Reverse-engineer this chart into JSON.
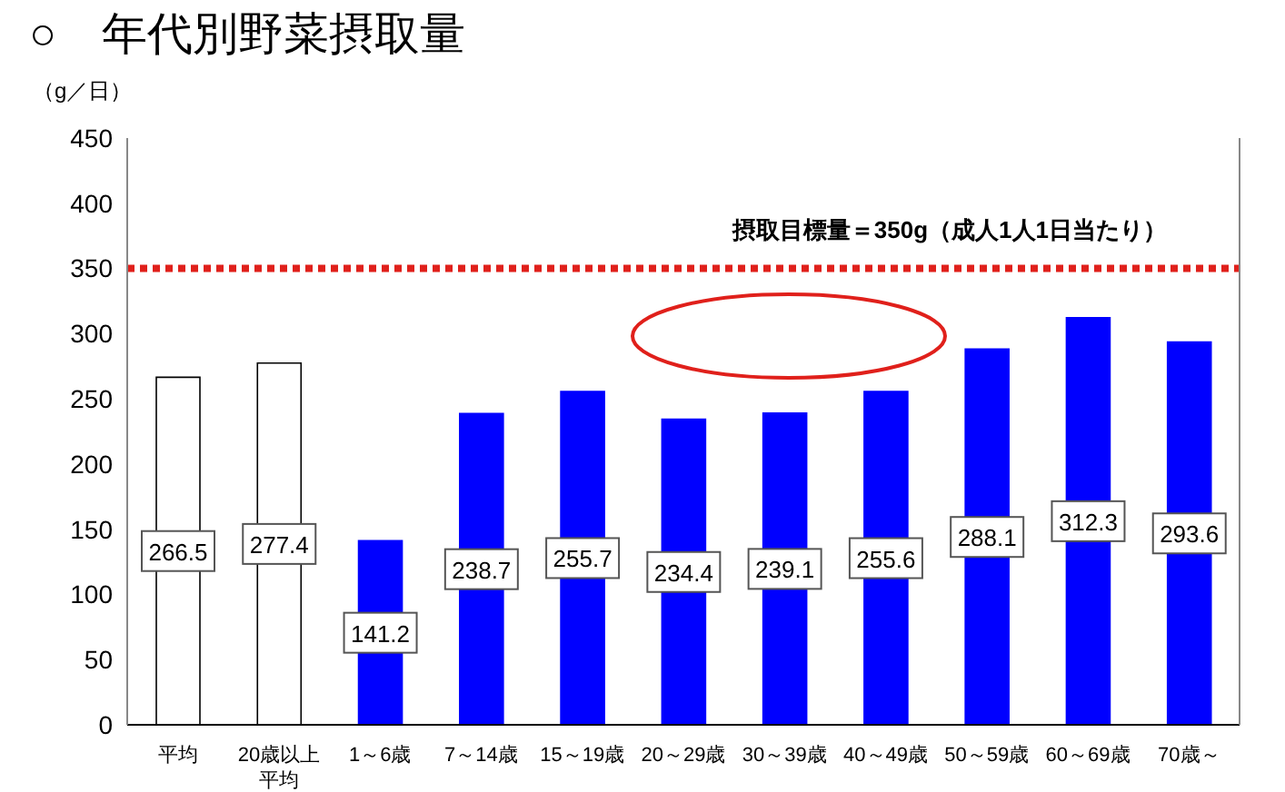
{
  "chart_data": {
    "type": "bar",
    "title": "○　年代別野菜摂取量",
    "ylabel": "（g／日）",
    "categories": [
      "平均",
      "20歳以上平均",
      "1～6歳",
      "7～14歳",
      "15～19歳",
      "20～29歳",
      "30～39歳",
      "40～49歳",
      "50～59歳",
      "60～69歳",
      "70歳～"
    ],
    "values": [
      266.5,
      277.4,
      141.2,
      238.7,
      255.7,
      234.4,
      239.1,
      255.6,
      288.1,
      312.3,
      293.6
    ],
    "colors": [
      "#ffffff",
      "#ffffff",
      "#0000ff",
      "#0000ff",
      "#0000ff",
      "#0000ff",
      "#0000ff",
      "#0000ff",
      "#0000ff",
      "#0000ff",
      "#0000ff"
    ],
    "ylim": [
      0,
      450
    ],
    "yticks": [
      0,
      50,
      100,
      150,
      200,
      250,
      300,
      350,
      400,
      450
    ],
    "data_labels": true,
    "ref_lines": [
      {
        "axis": "y",
        "value": 350,
        "label": "摂取目標量＝350g（成人1人1日当たり）",
        "color": "#e0201b",
        "line_style": "dotted"
      }
    ]
  }
}
